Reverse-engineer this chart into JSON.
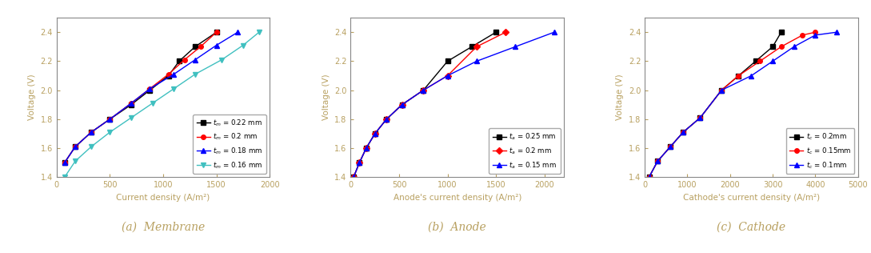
{
  "membrane": {
    "xlabel": "Current density (A/m²)",
    "ylabel": "Voltage (V)",
    "caption": "(a)  Membrane",
    "ylim": [
      1.4,
      2.5
    ],
    "xlim": [
      0,
      2000
    ],
    "xticks": [
      0,
      500,
      1000,
      1500,
      2000
    ],
    "yticks": [
      1.4,
      1.6,
      1.8,
      2.0,
      2.2,
      2.4
    ],
    "series": [
      {
        "label": "$t_m$ = 0.22 mm",
        "color": "black",
        "marker": "s",
        "x": [
          75,
          175,
          325,
          500,
          700,
          875,
          1050,
          1150,
          1300,
          1500
        ],
        "y": [
          1.5,
          1.61,
          1.71,
          1.8,
          1.9,
          2.0,
          2.1,
          2.2,
          2.3,
          2.4
        ]
      },
      {
        "label": "$t_m$ = 0.2 mm",
        "color": "red",
        "marker": "o",
        "x": [
          75,
          175,
          325,
          500,
          700,
          875,
          1050,
          1200,
          1350,
          1500
        ],
        "y": [
          1.5,
          1.61,
          1.71,
          1.8,
          1.91,
          2.01,
          2.11,
          2.21,
          2.3,
          2.4
        ]
      },
      {
        "label": "$t_m$ = 0.18 mm",
        "color": "blue",
        "marker": "^",
        "x": [
          75,
          175,
          325,
          500,
          700,
          875,
          1100,
          1300,
          1500,
          1700
        ],
        "y": [
          1.5,
          1.61,
          1.71,
          1.8,
          1.91,
          2.01,
          2.11,
          2.21,
          2.31,
          2.4
        ]
      },
      {
        "label": "$t_m$ = 0.16 mm",
        "color": "#40C0C0",
        "marker": "v",
        "x": [
          75,
          175,
          325,
          500,
          700,
          900,
          1100,
          1300,
          1550,
          1750,
          1900
        ],
        "y": [
          1.4,
          1.51,
          1.61,
          1.71,
          1.81,
          1.91,
          2.01,
          2.11,
          2.21,
          2.31,
          2.4
        ]
      }
    ]
  },
  "anode": {
    "xlabel": "Anode's current density (A/m²)",
    "ylabel": "Voltage (V)",
    "caption": "(b)  Anode",
    "ylim": [
      1.4,
      2.5
    ],
    "xlim": [
      0,
      2200
    ],
    "xticks": [
      0,
      500,
      1000,
      1500,
      2000
    ],
    "yticks": [
      1.4,
      1.6,
      1.8,
      2.0,
      2.2,
      2.4
    ],
    "series": [
      {
        "label": "$t_a$ = 0.25 mm",
        "color": "black",
        "marker": "s",
        "x": [
          30,
          90,
          160,
          250,
          370,
          530,
          750,
          1000,
          1250,
          1500
        ],
        "y": [
          1.4,
          1.5,
          1.6,
          1.7,
          1.8,
          1.9,
          2.0,
          2.2,
          2.3,
          2.4
        ]
      },
      {
        "label": "$t_a$ = 0.2 mm",
        "color": "red",
        "marker": "D",
        "x": [
          30,
          90,
          160,
          250,
          370,
          530,
          750,
          1000,
          1300,
          1600
        ],
        "y": [
          1.4,
          1.5,
          1.6,
          1.7,
          1.8,
          1.9,
          2.0,
          2.1,
          2.3,
          2.4
        ]
      },
      {
        "label": "$t_a$ = 0.15 mm",
        "color": "blue",
        "marker": "^",
        "x": [
          30,
          90,
          160,
          250,
          370,
          530,
          750,
          1000,
          1300,
          1700,
          2100
        ],
        "y": [
          1.4,
          1.5,
          1.6,
          1.7,
          1.8,
          1.9,
          2.0,
          2.1,
          2.2,
          2.3,
          2.4
        ]
      }
    ]
  },
  "cathode": {
    "xlabel": "Cathode's current density (A/m²)",
    "ylabel": "Voltage (V)",
    "caption": "(c)  Cathode",
    "ylim": [
      1.4,
      2.5
    ],
    "xlim": [
      0,
      5000
    ],
    "xticks": [
      0,
      1000,
      2000,
      3000,
      4000,
      5000
    ],
    "yticks": [
      1.4,
      1.6,
      1.8,
      2.0,
      2.2,
      2.4
    ],
    "series": [
      {
        "label": "$t_c$ = 0.2mm",
        "color": "black",
        "marker": "s",
        "x": [
          100,
          300,
          600,
          900,
          1300,
          1800,
          2200,
          2600,
          3000,
          3200
        ],
        "y": [
          1.4,
          1.51,
          1.61,
          1.71,
          1.81,
          2.0,
          2.1,
          2.2,
          2.3,
          2.4
        ]
      },
      {
        "label": "$t_c$ = 0.15mm",
        "color": "red",
        "marker": "o",
        "x": [
          100,
          300,
          600,
          900,
          1300,
          1800,
          2200,
          2700,
          3200,
          3700,
          4000
        ],
        "y": [
          1.4,
          1.51,
          1.61,
          1.71,
          1.81,
          2.0,
          2.1,
          2.2,
          2.3,
          2.38,
          2.4
        ]
      },
      {
        "label": "$t_c$ = 0.1mm",
        "color": "blue",
        "marker": "^",
        "x": [
          100,
          300,
          600,
          900,
          1300,
          1800,
          2500,
          3000,
          3500,
          4000,
          4500
        ],
        "y": [
          1.4,
          1.51,
          1.61,
          1.71,
          1.81,
          2.0,
          2.1,
          2.2,
          2.3,
          2.38,
          2.4
        ]
      }
    ]
  },
  "caption_color": "#B8A060",
  "caption_fontsize": 10,
  "tick_color": "#B8A060",
  "label_color": "#B8A060",
  "spine_color": "#888888"
}
